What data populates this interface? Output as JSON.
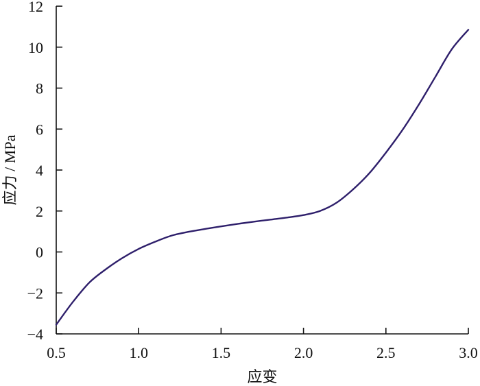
{
  "chart_data": {
    "type": "line",
    "title": "",
    "xlabel": "应变",
    "ylabel": "应力 / MPa",
    "xlim": [
      0.5,
      3.0
    ],
    "ylim": [
      -4,
      12
    ],
    "xticks": [
      0.5,
      1.0,
      1.5,
      2.0,
      2.5,
      3.0
    ],
    "xtick_labels": [
      "0.5",
      "1.0",
      "1.5",
      "2.0",
      "2.5",
      "3.0"
    ],
    "yticks": [
      -4,
      -2,
      0,
      2,
      4,
      6,
      8,
      10,
      12
    ],
    "ytick_labels": [
      "−4",
      "−2",
      "0",
      "2",
      "4",
      "6",
      "8",
      "10",
      "12"
    ],
    "grid": false,
    "series": [
      {
        "color": "#2e1f6b",
        "x": [
          0.5,
          0.6,
          0.7,
          0.8,
          0.9,
          1.0,
          1.1,
          1.2,
          1.3,
          1.4,
          1.5,
          1.6,
          1.7,
          1.8,
          1.9,
          2.0,
          2.1,
          2.2,
          2.3,
          2.4,
          2.5,
          2.6,
          2.7,
          2.8,
          2.9,
          3.0
        ],
        "y": [
          -3.55,
          -2.45,
          -1.5,
          -0.85,
          -0.3,
          0.15,
          0.5,
          0.8,
          0.98,
          1.12,
          1.25,
          1.37,
          1.48,
          1.58,
          1.68,
          1.8,
          2.0,
          2.4,
          3.05,
          3.85,
          4.85,
          5.95,
          7.2,
          8.55,
          9.9,
          10.85
        ]
      }
    ]
  }
}
